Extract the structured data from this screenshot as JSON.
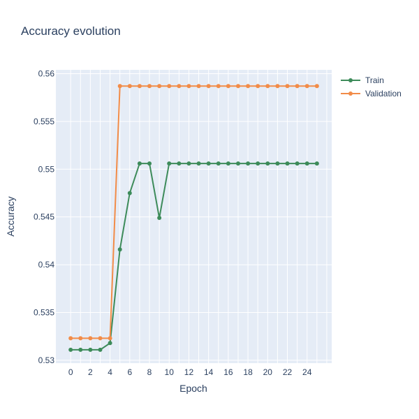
{
  "chart_data": {
    "type": "line",
    "title": "Accuracy evolution",
    "xlabel": "Epoch",
    "ylabel": "Accuracy",
    "xlim": [
      -1.5,
      26.5
    ],
    "ylim": [
      0.5297,
      0.5604
    ],
    "xticks": [
      0,
      2,
      4,
      6,
      8,
      10,
      12,
      14,
      16,
      18,
      20,
      22,
      24
    ],
    "yticks": [
      0.53,
      0.535,
      0.54,
      0.545,
      0.55,
      0.555,
      0.56
    ],
    "ytick_labels": [
      "0.53",
      "0.535",
      "0.54",
      "0.545",
      "0.55",
      "0.555",
      "0.56"
    ],
    "grid": true,
    "legend_position": "top-right",
    "x": [
      0,
      1,
      2,
      3,
      4,
      5,
      6,
      7,
      8,
      9,
      10,
      11,
      12,
      13,
      14,
      15,
      16,
      17,
      18,
      19,
      20,
      21,
      22,
      23,
      24,
      25
    ],
    "series": [
      {
        "name": "Train",
        "color": "#3d8b5a",
        "values": [
          0.5311,
          0.5311,
          0.5311,
          0.5311,
          0.5318,
          0.5416,
          0.5475,
          0.5506,
          0.5506,
          0.5449,
          0.5506,
          0.5506,
          0.5506,
          0.5506,
          0.5506,
          0.5506,
          0.5506,
          0.5506,
          0.5506,
          0.5506,
          0.5506,
          0.5506,
          0.5506,
          0.5506,
          0.5506,
          0.5506
        ]
      },
      {
        "name": "Validation",
        "color": "#f28c48",
        "values": [
          0.5323,
          0.5323,
          0.5323,
          0.5323,
          0.5323,
          0.5587,
          0.5587,
          0.5587,
          0.5587,
          0.5587,
          0.5587,
          0.5587,
          0.5587,
          0.5587,
          0.5587,
          0.5587,
          0.5587,
          0.5587,
          0.5587,
          0.5587,
          0.5587,
          0.5587,
          0.5587,
          0.5587,
          0.5587,
          0.5587
        ]
      }
    ],
    "plot_bgcolor": "#e5ecf6",
    "grid_color": "#ffffff"
  }
}
